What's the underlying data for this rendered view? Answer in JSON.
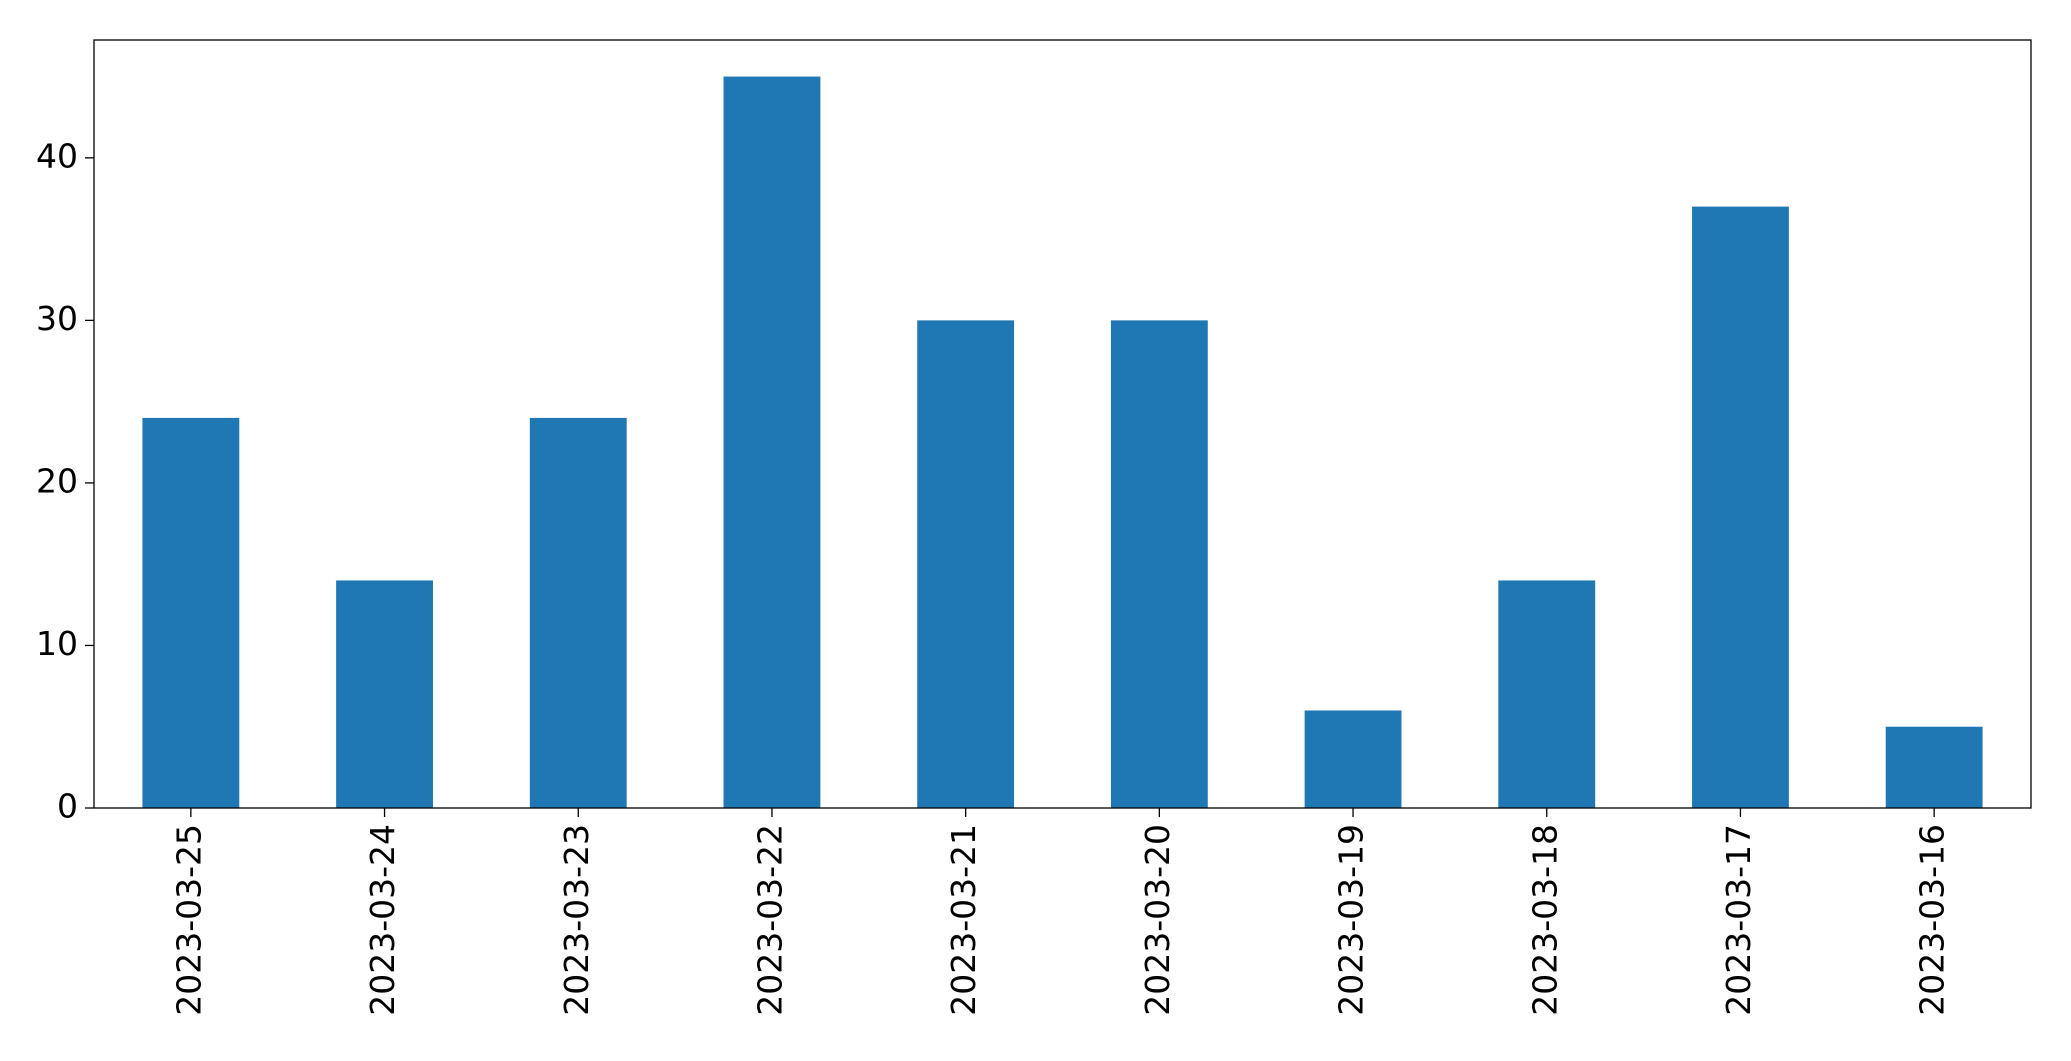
{
  "chart_data": {
    "type": "bar",
    "categories": [
      "2023-03-25",
      "2023-03-24",
      "2023-03-23",
      "2023-03-22",
      "2023-03-21",
      "2023-03-20",
      "2023-03-19",
      "2023-03-18",
      "2023-03-17",
      "2023-03-16"
    ],
    "values": [
      24,
      14,
      24,
      45,
      30,
      30,
      6,
      14,
      37,
      5
    ],
    "color": "#1f77b4",
    "ylim": [
      0,
      47.25
    ],
    "yticks": [
      0,
      10,
      20,
      30,
      40
    ],
    "grid": false
  }
}
